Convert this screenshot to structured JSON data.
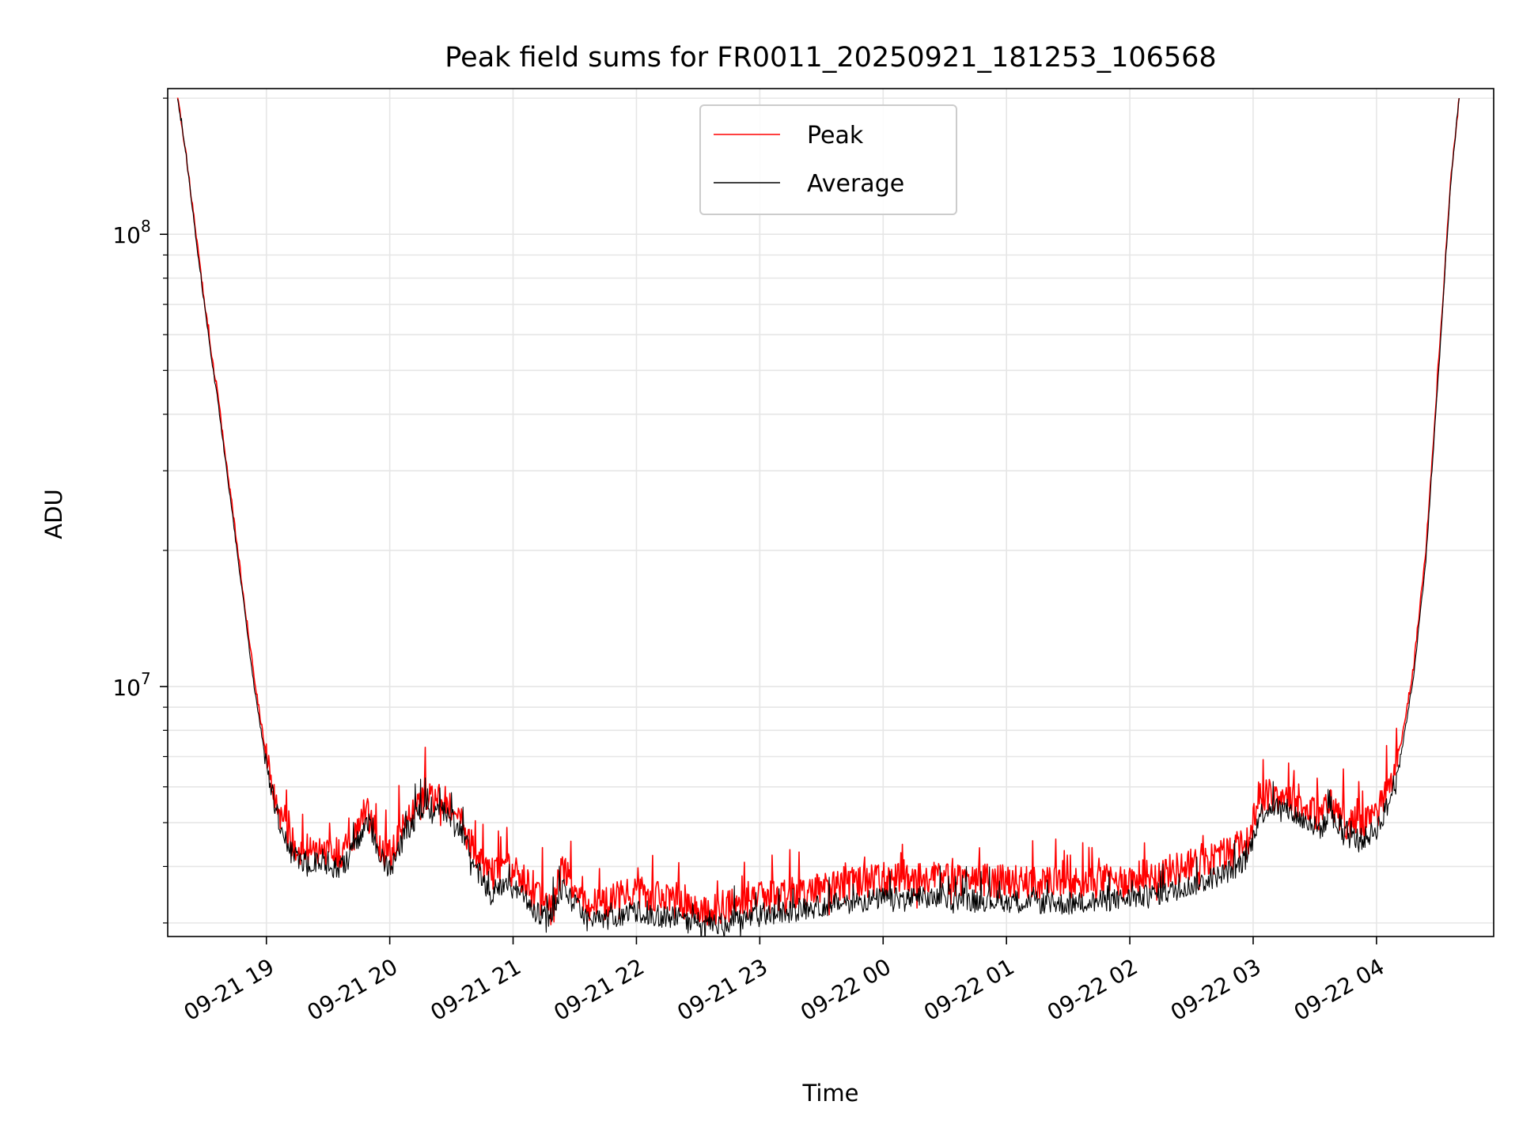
{
  "chart_data": {
    "type": "line",
    "title": "Peak field sums for FR0011_20250921_181253_106568",
    "xlabel": "Time",
    "ylabel": "ADU",
    "yscale": "log",
    "ylim": [
      2800000,
      210000000
    ],
    "xlim_hours": [
      18.2,
      28.95
    ],
    "grid": true,
    "legend_position": "upper center",
    "x_tick_hours": [
      19,
      20,
      21,
      22,
      23,
      24,
      25,
      26,
      27,
      28
    ],
    "x_tick_labels": [
      "09-21 19",
      "09-21 20",
      "09-21 21",
      "09-21 22",
      "09-21 23",
      "09-22 00",
      "09-22 01",
      "09-22 02",
      "09-22 03",
      "09-22 04"
    ],
    "y_tick_values": [
      10000000,
      100000000
    ],
    "y_tick_labels": [
      {
        "base": "10",
        "exp": "7"
      },
      {
        "base": "10",
        "exp": "8"
      }
    ],
    "series": [
      {
        "name": "Peak",
        "color": "#ff0000",
        "x_hours": [
          18.28,
          18.35,
          18.45,
          18.55,
          18.6,
          18.7,
          18.8,
          18.9,
          19.0,
          19.1,
          19.2,
          19.3,
          19.45,
          19.6,
          19.7,
          19.82,
          19.92,
          20.0,
          20.15,
          20.3,
          20.45,
          20.55,
          20.7,
          20.8,
          20.95,
          21.05,
          21.2,
          21.3,
          21.4,
          21.5,
          21.6,
          21.75,
          21.85,
          22.0,
          22.2,
          22.4,
          22.6,
          22.8,
          23.0,
          23.3,
          23.6,
          24.0,
          24.5,
          25.0,
          25.5,
          26.0,
          26.3,
          26.6,
          26.8,
          26.95,
          27.05,
          27.15,
          27.3,
          27.45,
          27.55,
          27.62,
          27.75,
          27.9,
          28.0,
          28.1,
          28.2,
          28.3,
          28.4,
          28.5,
          28.6,
          28.67
        ],
        "y_values": [
          200000000,
          150000000,
          90000000,
          55000000,
          45000000,
          28000000,
          17000000,
          10500000,
          7000000,
          5300000,
          4550000,
          4350000,
          4300000,
          4250000,
          4600000,
          5400000,
          4500000,
          4150000,
          5200000,
          5700000,
          5650000,
          5200000,
          4300000,
          3800000,
          3950000,
          3850000,
          3400000,
          3350000,
          3900000,
          3600000,
          3300000,
          3350000,
          3400000,
          3500000,
          3400000,
          3350000,
          3200000,
          3300000,
          3400000,
          3500000,
          3600000,
          3750000,
          3750000,
          3700000,
          3650000,
          3750000,
          3900000,
          4100000,
          4300000,
          4500000,
          5600000,
          5800000,
          5650000,
          5300000,
          5200000,
          5550000,
          5000000,
          5000000,
          5250000,
          5900000,
          7500000,
          11000000,
          20000000,
          50000000,
          130000000,
          200000000
        ]
      },
      {
        "name": "Average",
        "color": "#000000",
        "x_hours": [
          18.28,
          18.35,
          18.45,
          18.55,
          18.6,
          18.7,
          18.8,
          18.9,
          19.0,
          19.1,
          19.2,
          19.3,
          19.45,
          19.6,
          19.7,
          19.82,
          19.92,
          20.0,
          20.15,
          20.3,
          20.45,
          20.55,
          20.7,
          20.8,
          20.95,
          21.05,
          21.2,
          21.3,
          21.4,
          21.5,
          21.6,
          21.75,
          21.85,
          22.0,
          22.2,
          22.4,
          22.6,
          22.8,
          23.0,
          23.3,
          23.6,
          24.0,
          24.5,
          25.0,
          25.5,
          26.0,
          26.3,
          26.6,
          26.8,
          26.95,
          27.05,
          27.15,
          27.3,
          27.45,
          27.55,
          27.62,
          27.75,
          27.9,
          28.0,
          28.1,
          28.2,
          28.3,
          28.4,
          28.5,
          28.6,
          28.67
        ],
        "y_values": [
          200000000,
          148000000,
          88000000,
          54000000,
          44000000,
          27000000,
          16500000,
          10000000,
          6700000,
          5000000,
          4300000,
          4100000,
          4050000,
          3950000,
          4300000,
          5100000,
          4250000,
          3900000,
          4900000,
          5400000,
          5350000,
          4900000,
          4000000,
          3450000,
          3600000,
          3500000,
          3150000,
          3100000,
          3600000,
          3300000,
          3050000,
          3050000,
          3100000,
          3200000,
          3100000,
          3050000,
          2950000,
          3050000,
          3100000,
          3200000,
          3300000,
          3400000,
          3400000,
          3350000,
          3300000,
          3400000,
          3500000,
          3700000,
          3900000,
          4150000,
          5200000,
          5450000,
          5300000,
          4950000,
          4850000,
          5150000,
          4650000,
          4600000,
          4850000,
          5500000,
          7100000,
          10500000,
          19000000,
          48000000,
          128000000,
          200000000
        ]
      }
    ]
  }
}
